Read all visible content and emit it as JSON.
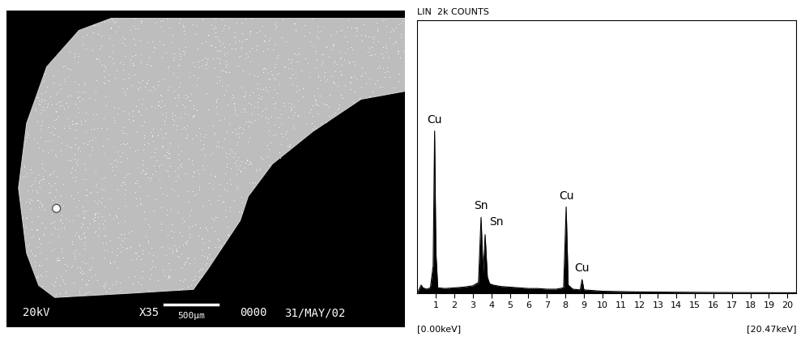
{
  "micrograph": {
    "labels": [
      "20kV",
      "X35",
      "500μm",
      "0000",
      "31/MAY/02"
    ]
  },
  "chart_data": {
    "type": "line",
    "title": "LIN  2k COUNTS",
    "x": [
      0.0,
      0.1,
      0.2,
      0.3,
      0.5,
      0.7,
      0.85,
      0.93,
      1.0,
      1.1,
      1.5,
      2.0,
      2.5,
      3.0,
      3.3,
      3.44,
      3.55,
      3.66,
      3.78,
      3.9,
      4.1,
      4.5,
      5.0,
      5.5,
      6.0,
      6.5,
      7.0,
      7.5,
      7.9,
      8.04,
      8.15,
      8.4,
      8.8,
      8.9,
      9.0,
      9.5,
      10.0,
      12.0,
      14.0,
      16.0,
      18.0,
      20.47
    ],
    "values": [
      0,
      30,
      60,
      40,
      30,
      40,
      200,
      1190,
      300,
      40,
      35,
      40,
      45,
      55,
      80,
      557,
      150,
      430,
      120,
      70,
      60,
      50,
      45,
      40,
      35,
      35,
      30,
      30,
      40,
      633,
      60,
      30,
      25,
      100,
      25,
      20,
      15,
      10,
      8,
      6,
      5,
      4
    ],
    "color": "#000000",
    "xlim": [
      0,
      20.47
    ],
    "xticks": [
      1,
      2,
      3,
      4,
      5,
      6,
      7,
      8,
      9,
      10,
      11,
      12,
      13,
      14,
      15,
      16,
      17,
      18,
      19,
      20
    ],
    "ylim": [
      0,
      2000
    ],
    "yticks": [],
    "tick_labels": "x",
    "xlim_labels": [
      "[0.00keV]",
      "[20.47keV]"
    ],
    "annotations": [
      {
        "text": "Cu",
        "x": 0.93,
        "y": 1190
      },
      {
        "text": "Sn",
        "x": 3.44,
        "y": 557
      },
      {
        "text": "Sn",
        "x": 3.66,
        "y": 430
      },
      {
        "text": "Cu",
        "x": 8.04,
        "y": 633
      },
      {
        "text": "Cu",
        "x": 8.9,
        "y": 100
      }
    ]
  }
}
